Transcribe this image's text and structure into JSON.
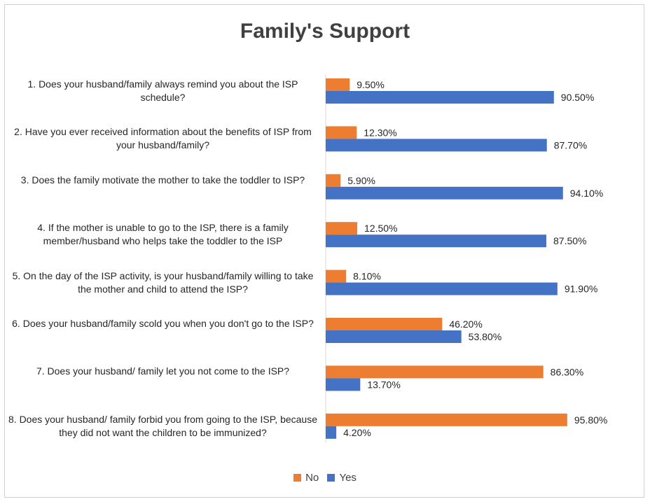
{
  "chart_data": {
    "type": "bar",
    "orientation": "horizontal",
    "title": "Family's Support",
    "categories": [
      "1. Does your husband/family always remind you about the ISP schedule?",
      "2. Have you ever received information about the benefits of ISP from your husband/family?",
      "3. Does the family motivate the mother to take the toddler to ISP?",
      "4. If the mother is unable to go to the ISP, there is a family member/husband who helps take the toddler to the ISP",
      "5. On the day of the ISP activity, is your husband/family willing to take the mother and child to attend the ISP?",
      "6. Does your husband/family scold you when you don't go to the ISP?",
      "7. Does your husband/ family let you not come to the ISP?",
      "8. Does your husband/ family forbid you from going to the ISP, because they did not want the children to be immunized?"
    ],
    "series": [
      {
        "name": "No",
        "color": "#ED7D31",
        "values": [
          9.5,
          12.3,
          5.9,
          12.5,
          8.1,
          46.2,
          86.3,
          95.8
        ],
        "labels": [
          "9.50%",
          "12.30%",
          "5.90%",
          "12.50%",
          "8.10%",
          "46.20%",
          "86.30%",
          "95.80%"
        ]
      },
      {
        "name": "Yes",
        "color": "#4472C4",
        "values": [
          90.5,
          87.7,
          94.1,
          87.5,
          91.9,
          53.8,
          13.7,
          4.2
        ],
        "labels": [
          "90.50%",
          "87.70%",
          "94.10%",
          "87.50%",
          "91.90%",
          "53.80%",
          "13.70%",
          "4.20%"
        ]
      }
    ],
    "xlim": [
      0,
      100
    ],
    "grid": false,
    "legend_position": "bottom"
  }
}
